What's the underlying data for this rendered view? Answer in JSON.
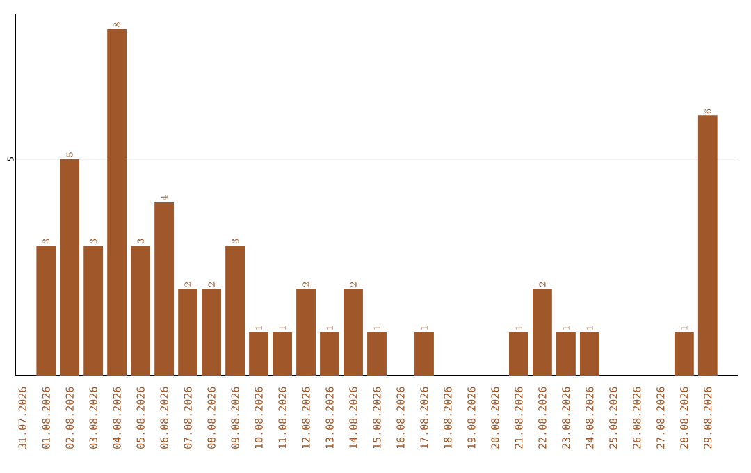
{
  "chart_data": {
    "type": "bar",
    "categories": [
      "31.07.2026",
      "01.08.2026",
      "02.08.2026",
      "03.08.2026",
      "04.08.2026",
      "05.08.2026",
      "06.08.2026",
      "07.08.2026",
      "08.08.2026",
      "09.08.2026",
      "10.08.2026",
      "11.08.2026",
      "12.08.2026",
      "13.08.2026",
      "14.08.2026",
      "15.08.2026",
      "16.08.2026",
      "17.08.2026",
      "18.08.2026",
      "19.08.2026",
      "20.08.2026",
      "21.08.2026",
      "22.08.2026",
      "23.08.2026",
      "24.08.2026",
      "25.08.2026",
      "26.08.2026",
      "27.08.2026",
      "28.08.2026",
      "29.08.2026"
    ],
    "values": [
      null,
      3,
      5,
      3,
      8,
      3,
      4,
      2,
      2,
      3,
      1,
      1,
      2,
      1,
      2,
      1,
      null,
      1,
      null,
      null,
      null,
      1,
      2,
      1,
      1,
      null,
      null,
      null,
      1,
      6
    ],
    "color": "#a0582a",
    "ylim": [
      0,
      8.35
    ],
    "yticks": [
      5
    ],
    "grid": "y",
    "data_labels": true
  }
}
